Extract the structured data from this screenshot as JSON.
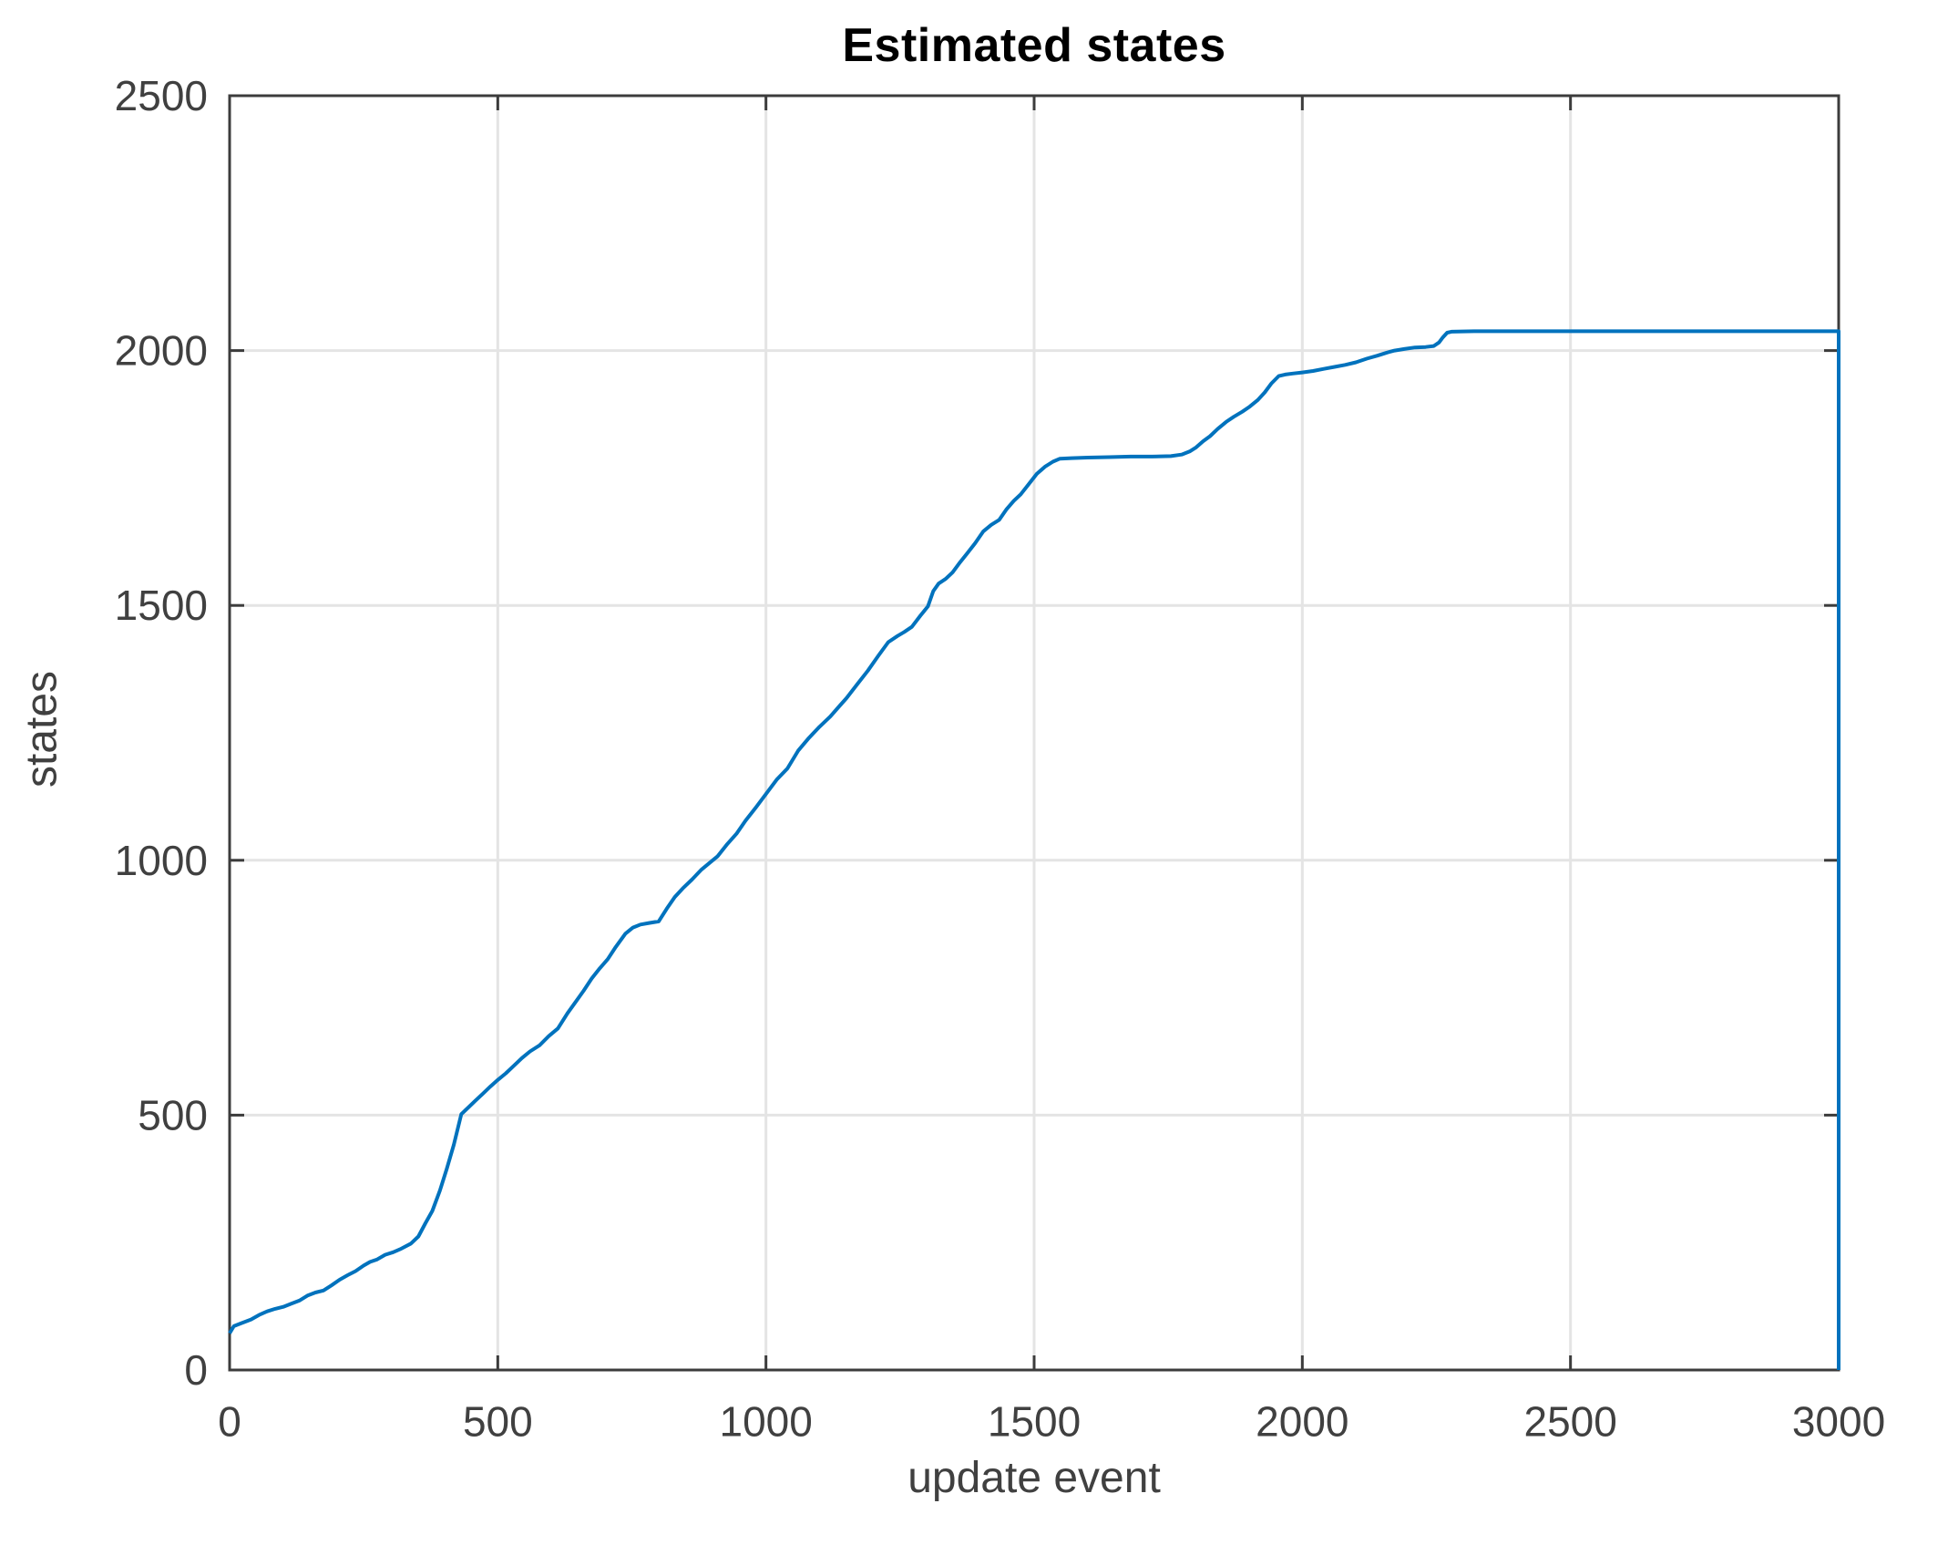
{
  "figure": {
    "background": "#ffffff"
  },
  "chart_data": {
    "type": "line",
    "title": "Estimated states",
    "xlabel": "update event",
    "ylabel": "states",
    "xlim": [
      0,
      3000
    ],
    "ylim": [
      0,
      2500
    ],
    "x_ticks": [
      0,
      500,
      1000,
      1500,
      2000,
      2500,
      3000
    ],
    "y_ticks": [
      0,
      500,
      1000,
      1500,
      2000,
      2500
    ],
    "grid": true,
    "legend_position": "none",
    "colors": {
      "line": "#0072BD",
      "grid": "#E4E4E4",
      "axis": "#3C3C3C",
      "tick_label": "#404040",
      "title": "#000000"
    },
    "series": [
      {
        "name": "estimated states",
        "points": [
          [
            0,
            72
          ],
          [
            8,
            86
          ],
          [
            22,
            92
          ],
          [
            40,
            99
          ],
          [
            55,
            108
          ],
          [
            70,
            115
          ],
          [
            85,
            120
          ],
          [
            100,
            124
          ],
          [
            115,
            130
          ],
          [
            130,
            136
          ],
          [
            145,
            146
          ],
          [
            160,
            152
          ],
          [
            175,
            156
          ],
          [
            190,
            166
          ],
          [
            205,
            177
          ],
          [
            220,
            186
          ],
          [
            235,
            194
          ],
          [
            250,
            205
          ],
          [
            262,
            212
          ],
          [
            275,
            217
          ],
          [
            290,
            226
          ],
          [
            305,
            231
          ],
          [
            320,
            238
          ],
          [
            338,
            248
          ],
          [
            352,
            262
          ],
          [
            365,
            288
          ],
          [
            378,
            312
          ],
          [
            392,
            352
          ],
          [
            405,
            395
          ],
          [
            418,
            442
          ],
          [
            432,
            502
          ],
          [
            445,
            515
          ],
          [
            458,
            528
          ],
          [
            472,
            542
          ],
          [
            486,
            556
          ],
          [
            500,
            569
          ],
          [
            515,
            582
          ],
          [
            530,
            597
          ],
          [
            545,
            612
          ],
          [
            560,
            625
          ],
          [
            578,
            637
          ],
          [
            595,
            655
          ],
          [
            612,
            670
          ],
          [
            630,
            700
          ],
          [
            645,
            722
          ],
          [
            660,
            744
          ],
          [
            675,
            768
          ],
          [
            690,
            788
          ],
          [
            705,
            806
          ],
          [
            720,
            830
          ],
          [
            738,
            856
          ],
          [
            752,
            868
          ],
          [
            766,
            874
          ],
          [
            782,
            877
          ],
          [
            800,
            880
          ],
          [
            815,
            905
          ],
          [
            830,
            928
          ],
          [
            845,
            945
          ],
          [
            862,
            962
          ],
          [
            880,
            982
          ],
          [
            895,
            995
          ],
          [
            910,
            1008
          ],
          [
            928,
            1032
          ],
          [
            945,
            1052
          ],
          [
            962,
            1078
          ],
          [
            980,
            1102
          ],
          [
            1000,
            1130
          ],
          [
            1020,
            1158
          ],
          [
            1040,
            1180
          ],
          [
            1060,
            1215
          ],
          [
            1080,
            1240
          ],
          [
            1100,
            1262
          ],
          [
            1120,
            1282
          ],
          [
            1135,
            1300
          ],
          [
            1150,
            1318
          ],
          [
            1170,
            1345
          ],
          [
            1190,
            1372
          ],
          [
            1210,
            1402
          ],
          [
            1228,
            1428
          ],
          [
            1245,
            1440
          ],
          [
            1258,
            1448
          ],
          [
            1272,
            1458
          ],
          [
            1288,
            1480
          ],
          [
            1302,
            1498
          ],
          [
            1312,
            1528
          ],
          [
            1322,
            1543
          ],
          [
            1335,
            1552
          ],
          [
            1348,
            1565
          ],
          [
            1362,
            1585
          ],
          [
            1375,
            1602
          ],
          [
            1390,
            1622
          ],
          [
            1405,
            1645
          ],
          [
            1420,
            1658
          ],
          [
            1435,
            1668
          ],
          [
            1448,
            1688
          ],
          [
            1462,
            1705
          ],
          [
            1475,
            1718
          ],
          [
            1490,
            1738
          ],
          [
            1505,
            1758
          ],
          [
            1520,
            1772
          ],
          [
            1535,
            1782
          ],
          [
            1548,
            1788
          ],
          [
            1570,
            1789
          ],
          [
            1600,
            1790
          ],
          [
            1640,
            1791
          ],
          [
            1680,
            1792
          ],
          [
            1720,
            1792
          ],
          [
            1755,
            1793
          ],
          [
            1775,
            1796
          ],
          [
            1790,
            1802
          ],
          [
            1802,
            1810
          ],
          [
            1815,
            1822
          ],
          [
            1828,
            1832
          ],
          [
            1842,
            1846
          ],
          [
            1858,
            1860
          ],
          [
            1872,
            1870
          ],
          [
            1888,
            1880
          ],
          [
            1902,
            1890
          ],
          [
            1917,
            1903
          ],
          [
            1930,
            1918
          ],
          [
            1942,
            1935
          ],
          [
            1956,
            1950
          ],
          [
            1968,
            1953
          ],
          [
            1982,
            1955
          ],
          [
            2000,
            1957
          ],
          [
            2020,
            1960
          ],
          [
            2040,
            1964
          ],
          [
            2060,
            1968
          ],
          [
            2080,
            1972
          ],
          [
            2100,
            1977
          ],
          [
            2120,
            1984
          ],
          [
            2140,
            1990
          ],
          [
            2158,
            1996
          ],
          [
            2172,
            2000
          ],
          [
            2190,
            2003
          ],
          [
            2210,
            2006
          ],
          [
            2230,
            2007
          ],
          [
            2245,
            2009
          ],
          [
            2255,
            2016
          ],
          [
            2262,
            2026
          ],
          [
            2270,
            2035
          ],
          [
            2278,
            2037
          ],
          [
            2320,
            2038
          ],
          [
            2400,
            2038
          ],
          [
            2500,
            2038
          ],
          [
            2600,
            2038
          ],
          [
            2700,
            2038
          ],
          [
            2800,
            2038
          ],
          [
            2900,
            2038
          ],
          [
            2998,
            2038
          ],
          [
            3000,
            2038
          ],
          [
            3000,
            0
          ]
        ]
      }
    ]
  }
}
